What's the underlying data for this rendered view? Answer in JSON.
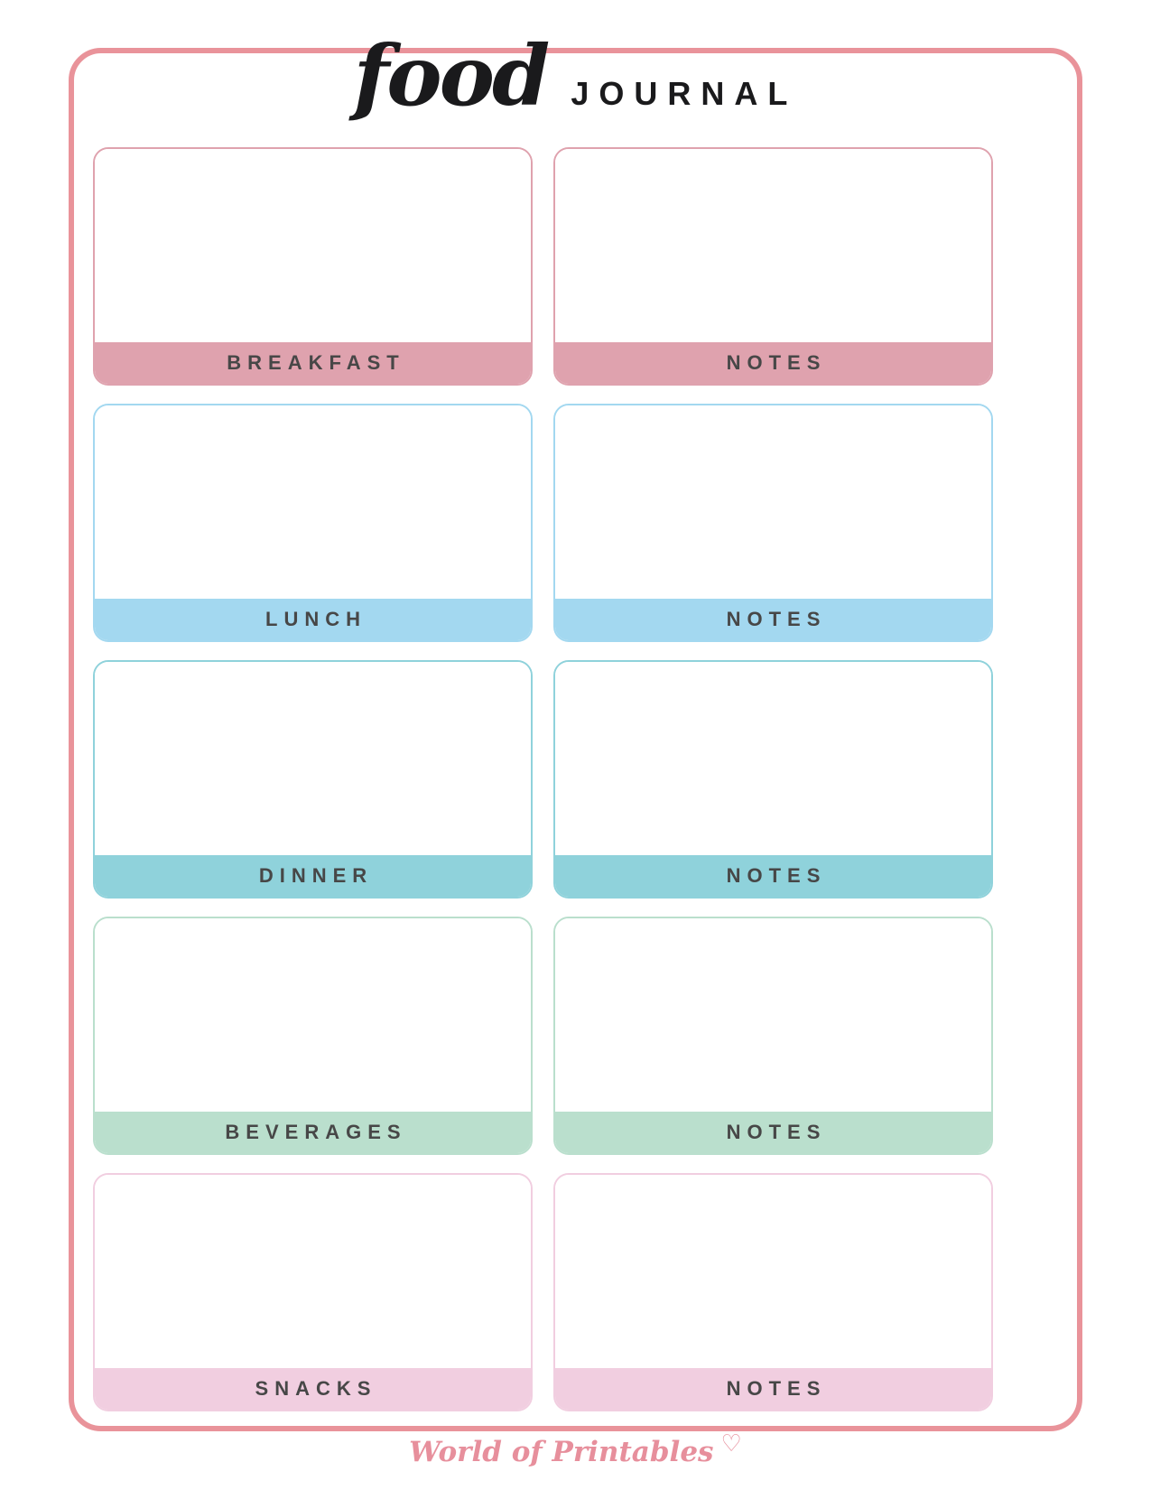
{
  "page": {
    "title_script": "food",
    "title_rest": "JOURNAL",
    "frame_color": "#E9939A",
    "label_text_color": "#474747",
    "title_color": "#1A1A1C"
  },
  "rows": [
    {
      "meal_label": "BREAKFAST",
      "notes_label": "NOTES",
      "color": "#DFA2AE"
    },
    {
      "meal_label": "LUNCH",
      "notes_label": "NOTES",
      "color": "#A3D8F0"
    },
    {
      "meal_label": "DINNER",
      "notes_label": "NOTES",
      "color": "#8FD2DB"
    },
    {
      "meal_label": "BEVERAGES",
      "notes_label": "NOTES",
      "color": "#BADFCD"
    },
    {
      "meal_label": "SNACKS",
      "notes_label": "NOTES",
      "color": "#F1CEE0"
    }
  ],
  "footer": {
    "brand_text": "World of Printables",
    "heart_icon": "♡",
    "color": "#E78F9C"
  }
}
